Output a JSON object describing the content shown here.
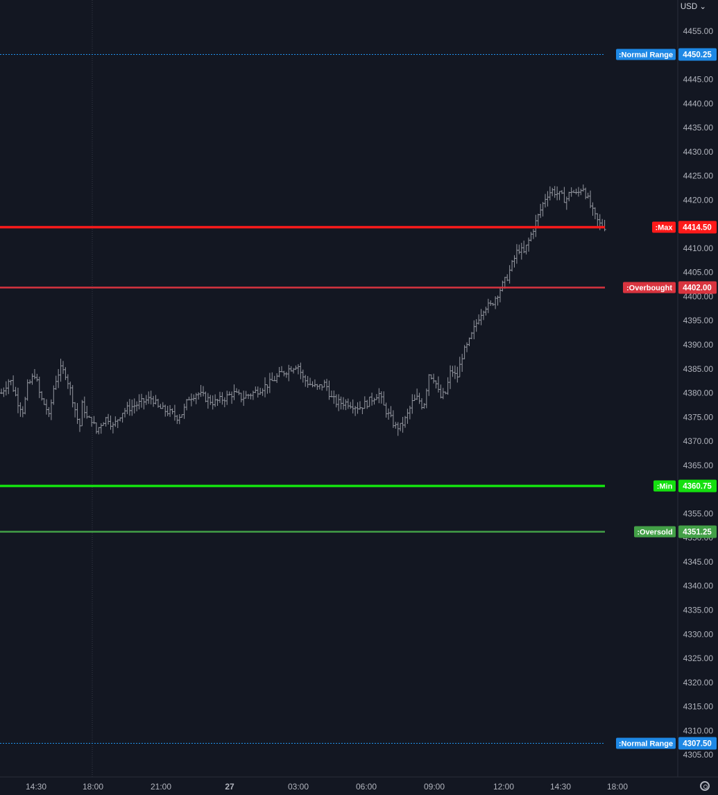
{
  "currency_label": "USD",
  "currency_caret": "⌄",
  "colors": {
    "background": "#131722",
    "bars": "#9598a1",
    "normal_range": "#2196f3",
    "normal_range_tag": "#1e88e5",
    "max": "#ff1a1a",
    "overbought": "#d9343f",
    "min": "#14e00f",
    "oversold": "#43a047",
    "axis_text": "#b2b5be",
    "grid": "#2a2e39"
  },
  "chart_data": {
    "type": "ohlc",
    "y_axis": {
      "ylim": [
        4301.5,
        4461
      ],
      "ticks": [
        4305,
        4310,
        4315,
        4320,
        4325,
        4330,
        4335,
        4340,
        4345,
        4350,
        4355,
        4360,
        4365,
        4370,
        4375,
        4380,
        4385,
        4390,
        4395,
        4400,
        4405,
        4410,
        4415,
        4420,
        4425,
        4430,
        4435,
        4440,
        4445,
        4450,
        4455
      ],
      "tick_labels": [
        "4305.00",
        "4310.00",
        "4315.00",
        "4320.00",
        "4325.00",
        "4330.00",
        "4335.00",
        "4340.00",
        "4345.00",
        "4350.00",
        "4355.00",
        "4360.00",
        "4365.00",
        "4370.00",
        "4375.00",
        "4380.00",
        "4385.00",
        "4390.00",
        "4395.00",
        "4400.00",
        "4405.00",
        "4410.00",
        "4415.00",
        "4420.00",
        "4425.00",
        "4430.00",
        "4435.00",
        "4440.00",
        "4445.00",
        "4450.00",
        "4455.00"
      ]
    },
    "x_axis": {
      "ticks": [
        {
          "label": "14:30",
          "bold": false
        },
        {
          "label": "18:00",
          "bold": false
        },
        {
          "label": "21:00",
          "bold": false
        },
        {
          "label": "27",
          "bold": true
        },
        {
          "label": "03:00",
          "bold": false
        },
        {
          "label": "06:00",
          "bold": false
        },
        {
          "label": "09:00",
          "bold": false
        },
        {
          "label": "12:00",
          "bold": false
        },
        {
          "label": "14:30",
          "bold": false
        },
        {
          "label": "18:00",
          "bold": false
        }
      ]
    },
    "levels": [
      {
        "name": ":Normal Range",
        "value": 4450.25,
        "price_label": "4450.25",
        "style": "dotted",
        "color_key": "normal_range"
      },
      {
        "name": ":Max",
        "value": 4414.5,
        "price_label": "4414.50",
        "style": "solid-thick",
        "color_key": "max"
      },
      {
        "name": ":Overbought",
        "value": 4402.0,
        "price_label": "4402.00",
        "style": "solid",
        "color_key": "overbought"
      },
      {
        "name": ":Min",
        "value": 4360.75,
        "price_label": "4360.75",
        "style": "solid-thick",
        "color_key": "min"
      },
      {
        "name": ":Oversold",
        "value": 4351.25,
        "price_label": "4351.25",
        "style": "solid",
        "color_key": "oversold"
      },
      {
        "name": ":Normal Range",
        "value": 4307.5,
        "price_label": "4307.50",
        "style": "dotted",
        "color_key": "normal_range"
      }
    ],
    "price_path": [
      [
        0,
        4380
      ],
      [
        3,
        4383
      ],
      [
        6,
        4378
      ],
      [
        8,
        4376
      ],
      [
        9,
        4381
      ],
      [
        12,
        4384
      ],
      [
        14,
        4379
      ],
      [
        16,
        4377
      ],
      [
        17,
        4375
      ],
      [
        19,
        4382
      ],
      [
        21,
        4385
      ],
      [
        23,
        4384
      ],
      [
        25,
        4380
      ],
      [
        27,
        4375
      ],
      [
        28,
        4373
      ],
      [
        29,
        4378
      ],
      [
        31,
        4374
      ],
      [
        32,
        4375
      ],
      [
        34,
        4372
      ],
      [
        36,
        4374
      ],
      [
        38,
        4375
      ],
      [
        40,
        4373
      ],
      [
        43,
        4376
      ],
      [
        46,
        4377
      ],
      [
        50,
        4378
      ],
      [
        54,
        4379
      ],
      [
        56,
        4377
      ],
      [
        60,
        4376
      ],
      [
        63,
        4375
      ],
      [
        65,
        4376
      ],
      [
        67,
        4379
      ],
      [
        70,
        4380
      ],
      [
        73,
        4379
      ],
      [
        76,
        4378
      ],
      [
        80,
        4379
      ],
      [
        83,
        4380
      ],
      [
        86,
        4379
      ],
      [
        90,
        4380
      ],
      [
        93,
        4381
      ],
      [
        96,
        4382
      ],
      [
        100,
        4384
      ],
      [
        103,
        4385
      ],
      [
        106,
        4386
      ],
      [
        108,
        4383
      ],
      [
        110,
        4382
      ],
      [
        113,
        4381
      ],
      [
        116,
        4382
      ],
      [
        118,
        4379
      ],
      [
        120,
        4378
      ],
      [
        124,
        4378
      ],
      [
        128,
        4377
      ],
      [
        131,
        4378
      ],
      [
        133,
        4379
      ],
      [
        135,
        4380
      ],
      [
        137,
        4377
      ],
      [
        139,
        4375
      ],
      [
        141,
        4373
      ],
      [
        143,
        4373
      ],
      [
        145,
        4375
      ],
      [
        147,
        4378
      ],
      [
        149,
        4379
      ],
      [
        151,
        4377
      ],
      [
        153,
        4384
      ],
      [
        155,
        4383
      ],
      [
        157,
        4379
      ],
      [
        159,
        4380
      ],
      [
        161,
        4385
      ],
      [
        163,
        4383
      ],
      [
        165,
        4388
      ],
      [
        167,
        4390
      ],
      [
        169,
        4393
      ],
      [
        171,
        4396
      ],
      [
        173,
        4398
      ],
      [
        175,
        4398
      ],
      [
        177,
        4400
      ],
      [
        179,
        4402
      ],
      [
        181,
        4404
      ],
      [
        183,
        4407
      ],
      [
        185,
        4410
      ],
      [
        187,
        4409
      ],
      [
        189,
        4412
      ],
      [
        191,
        4415
      ],
      [
        193,
        4418
      ],
      [
        195,
        4421
      ],
      [
        197,
        4422
      ],
      [
        200,
        4421
      ],
      [
        202,
        4420
      ],
      [
        204,
        4422
      ],
      [
        206,
        4421
      ],
      [
        208,
        4423
      ],
      [
        210,
        4420
      ],
      [
        212,
        4417
      ],
      [
        214,
        4415
      ],
      [
        216,
        4414.5
      ]
    ],
    "x_domain": [
      0,
      216
    ]
  }
}
